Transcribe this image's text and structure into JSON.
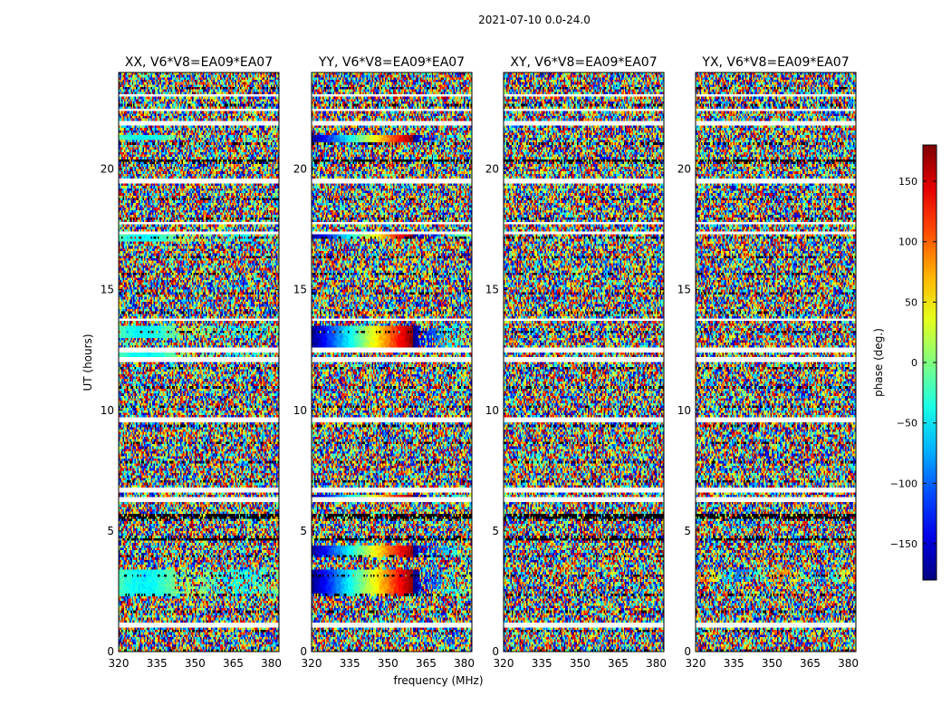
{
  "figure_title": "2021-07-10 0.0-24.0",
  "shared_xlabel": "frequency (MHz)",
  "shared_ylabel": "UT (hours)",
  "chart_data": {
    "type": "heatmap",
    "title": "2021-07-10 0.0-24.0",
    "xlabel": "frequency (MHz)",
    "ylabel": "UT (hours)",
    "xlim": [
      320,
      383
    ],
    "ylim": [
      0,
      24
    ],
    "x_ticks": [
      320,
      335,
      350,
      365,
      380
    ],
    "y_ticks": [
      0,
      5,
      10,
      15,
      20
    ],
    "panels": [
      {
        "title": "XX, V6*V8=EA09*EA07",
        "structure": "partial"
      },
      {
        "title": "YY, V6*V8=EA09*EA07",
        "structure": "strong"
      },
      {
        "title": "XY, V6*V8=EA09*EA07",
        "structure": "none"
      },
      {
        "title": "YX, V6*V8=EA09*EA07",
        "structure": "weak"
      }
    ],
    "colorbar": {
      "label": "phase (deg.)",
      "colormap": "jet",
      "range": [
        -180,
        180
      ],
      "ticks": [
        150,
        100,
        50,
        0,
        -50,
        -100,
        -150
      ],
      "tick_labels": [
        "150",
        "100",
        "50",
        "0",
        "−50",
        "−100",
        "−150"
      ]
    },
    "gap_bands_hours": [
      [
        1.0,
        1.25
      ],
      [
        6.15,
        6.35
      ],
      [
        6.6,
        6.8
      ],
      [
        9.55,
        9.7
      ],
      [
        12.05,
        12.2
      ],
      [
        12.42,
        12.58
      ],
      [
        13.72,
        13.82
      ],
      [
        17.3,
        17.4
      ],
      [
        17.68,
        17.82
      ],
      [
        19.42,
        19.58
      ],
      [
        21.85,
        22.05
      ],
      [
        22.4,
        22.52
      ],
      [
        23.05,
        23.15
      ]
    ],
    "black_bands_hours": [
      [
        5.45,
        5.55
      ],
      [
        5.65,
        5.75
      ],
      [
        4.6,
        4.65
      ],
      [
        19.0,
        19.05
      ],
      [
        20.35,
        20.4
      ]
    ]
  },
  "colors": {
    "background": "#ffffff",
    "gap": "#ffffff",
    "missing": "#000000",
    "axis": "#000000"
  }
}
